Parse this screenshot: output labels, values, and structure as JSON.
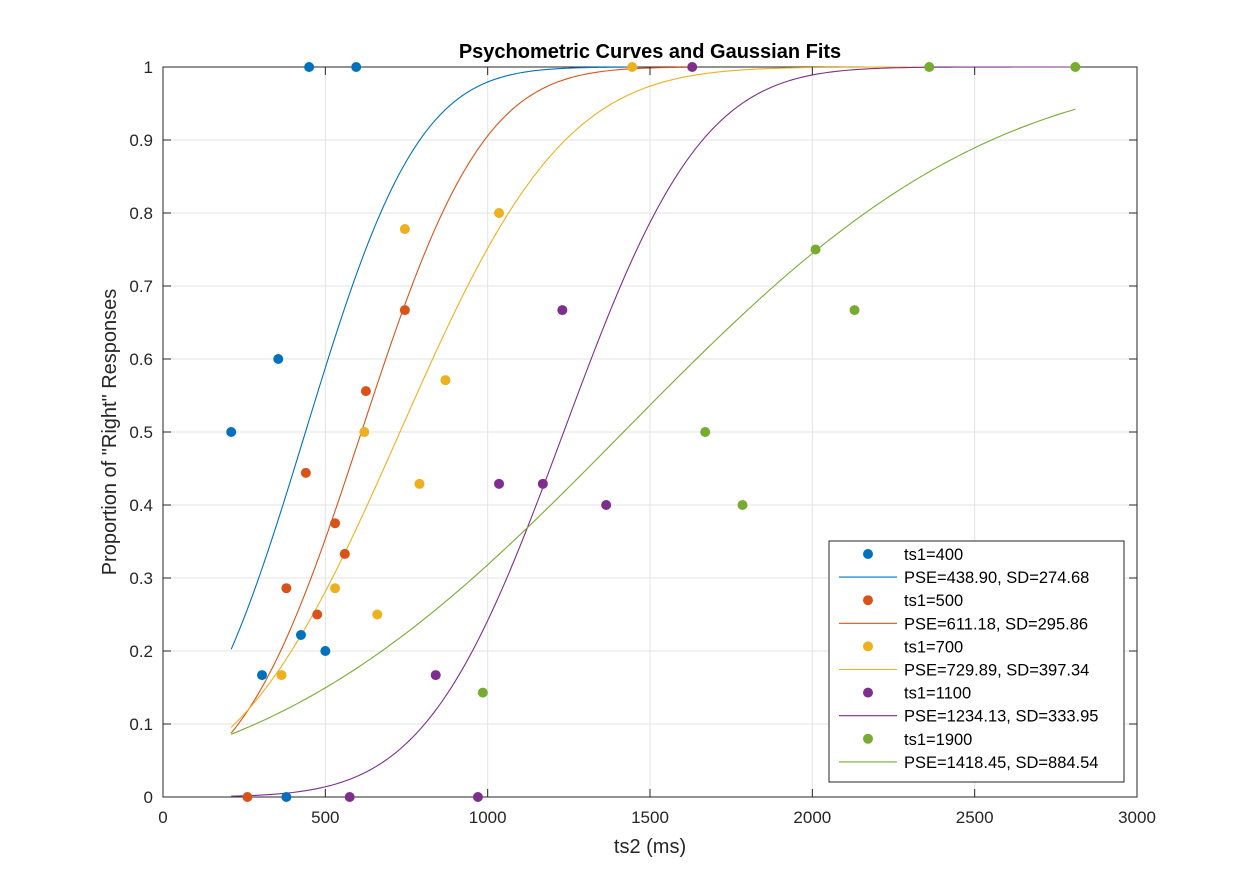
{
  "chart_data": {
    "type": "scatter",
    "title": "Psychometric Curves and Gaussian Fits",
    "xlabel": "ts2 (ms)",
    "ylabel": "Proportion of \"Right\" Responses",
    "xlim": [
      0,
      3000
    ],
    "ylim": [
      0,
      1
    ],
    "xticks": [
      0,
      500,
      1000,
      1500,
      2000,
      2500,
      3000
    ],
    "yticks": [
      0,
      0.1,
      0.2,
      0.3,
      0.4,
      0.5,
      0.6,
      0.7,
      0.8,
      0.9,
      1
    ],
    "grid": true,
    "legend_position": "bottom-right",
    "series": [
      {
        "name": "ts1=400",
        "fit_label": "PSE=438.90, SD=274.68",
        "color": "#0072BD",
        "pse": 438.9,
        "sd": 274.68,
        "fit_range": [
          210,
          1440
        ],
        "points": [
          [
            210,
            0.5
          ],
          [
            305,
            0.167
          ],
          [
            355,
            0.6
          ],
          [
            380,
            0
          ],
          [
            425,
            0.222
          ],
          [
            450,
            1
          ],
          [
            500,
            0.2
          ],
          [
            595,
            1
          ]
        ]
      },
      {
        "name": "ts1=500",
        "fit_label": "PSE=611.18, SD=295.86",
        "color": "#D95319",
        "pse": 611.18,
        "sd": 295.86,
        "fit_range": [
          210,
          1630
        ],
        "points": [
          [
            260,
            0
          ],
          [
            380,
            0.286
          ],
          [
            440,
            0.444
          ],
          [
            475,
            0.25
          ],
          [
            530,
            0.375
          ],
          [
            560,
            0.333
          ],
          [
            625,
            0.556
          ],
          [
            745,
            0.667
          ]
        ]
      },
      {
        "name": "ts1=700",
        "fit_label": "PSE=729.89, SD=397.34",
        "color": "#EDB120",
        "pse": 729.89,
        "sd": 397.34,
        "fit_range": [
          210,
          2350
        ],
        "points": [
          [
            365,
            0.167
          ],
          [
            530,
            0.286
          ],
          [
            620,
            0.5
          ],
          [
            660,
            0.25
          ],
          [
            745,
            0.778
          ],
          [
            790,
            0.429
          ],
          [
            870,
            0.571
          ],
          [
            1035,
            0.8
          ],
          [
            1445,
            1
          ]
        ]
      },
      {
        "name": "ts1=1100",
        "fit_label": "PSE=1234.13, SD=333.95",
        "color": "#7E2F8E",
        "pse": 1234.13,
        "sd": 333.95,
        "fit_range": [
          210,
          2810
        ],
        "points": [
          [
            575,
            0
          ],
          [
            840,
            0.167
          ],
          [
            970,
            0
          ],
          [
            1035,
            0.429
          ],
          [
            1170,
            0.429
          ],
          [
            1230,
            0.667
          ],
          [
            1365,
            0.4
          ],
          [
            1630,
            1
          ]
        ]
      },
      {
        "name": "ts1=1900",
        "fit_label": "PSE=1418.45, SD=884.54",
        "color": "#77AC30",
        "pse": 1418.45,
        "sd": 884.54,
        "fit_range": [
          210,
          2810
        ],
        "points": [
          [
            985,
            0.143
          ],
          [
            1670,
            0.5
          ],
          [
            1785,
            0.4
          ],
          [
            2010,
            0.75
          ],
          [
            2130,
            0.667
          ],
          [
            2360,
            1
          ],
          [
            2810,
            1
          ]
        ]
      }
    ]
  }
}
